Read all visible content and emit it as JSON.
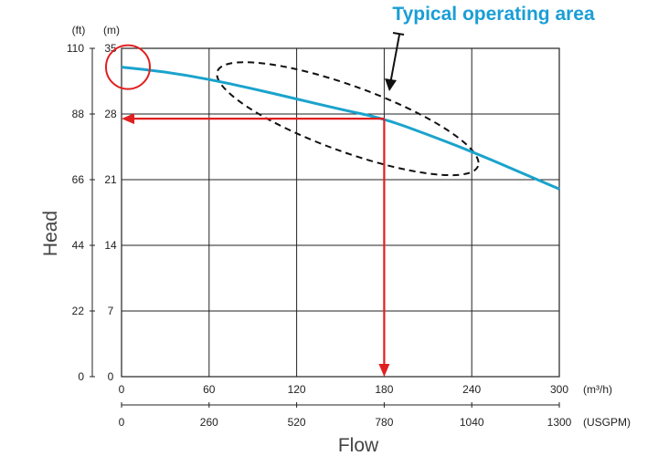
{
  "chart_data": {
    "type": "line",
    "title": "",
    "annotation": "Typical operating area",
    "xlabel": "Flow",
    "ylabel": "Head",
    "x_primary": {
      "unit": "(m³/h)",
      "ticks": [
        "0",
        "60",
        "120",
        "180",
        "240",
        "300"
      ],
      "range": [
        0,
        300
      ]
    },
    "x_secondary": {
      "unit": "(USGPM)",
      "ticks": [
        "0",
        "260",
        "520",
        "780",
        "1040",
        "1300"
      ],
      "range": [
        0,
        1300
      ]
    },
    "y_primary": {
      "unit": "(m)",
      "ticks": [
        "0",
        "7",
        "14",
        "21",
        "28",
        "35"
      ],
      "range": [
        0,
        35
      ]
    },
    "y_secondary": {
      "unit": "(ft)",
      "ticks": [
        "0",
        "22",
        "44",
        "66",
        "88",
        "110"
      ],
      "range": [
        0,
        110
      ]
    },
    "grid": true,
    "series": [
      {
        "color": "#1aa3cc",
        "x": [
          0,
          30,
          60,
          90,
          120,
          150,
          180,
          210,
          240,
          270,
          300
        ],
        "y": [
          33.0,
          32.5,
          31.7,
          30.7,
          29.6,
          28.5,
          27.5,
          25.8,
          24.0,
          22.0,
          20.0
        ]
      }
    ],
    "operating_point": {
      "x": 180,
      "y": 27.5,
      "color": "#e02020"
    },
    "operating_area": {
      "x_range": [
        70,
        240
      ],
      "y_range": [
        23.5,
        31.5
      ]
    },
    "shutoff_marker": {
      "x": 0,
      "y": 33.0,
      "color": "#e02020"
    }
  }
}
